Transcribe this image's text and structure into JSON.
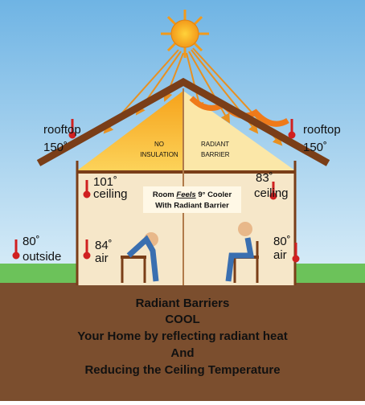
{
  "rooftop_left": {
    "label": "rooftop",
    "temp": "150˚"
  },
  "rooftop_right": {
    "label": "rooftop",
    "temp": "150˚"
  },
  "attic_left": {
    "line1": "NO",
    "line2": "INSULATION"
  },
  "attic_right": {
    "line1": "RADIANT",
    "line2": "BARRIER"
  },
  "callout": {
    "part1": "Room",
    "part2": "Feels",
    "part3": "9° Cooler",
    "line2": "With Radiant Barrier"
  },
  "ceiling_left": {
    "temp": "101˚",
    "label": "ceiling"
  },
  "ceiling_right": {
    "temp": "83˚",
    "label": "ceiling"
  },
  "outside": {
    "temp": "80˚",
    "label": "outside"
  },
  "air_left": {
    "temp": "84˚",
    "label": "air"
  },
  "air_right": {
    "temp": "80˚",
    "label": "air"
  },
  "caption": [
    "Radiant Barriers",
    "COOL",
    "Your Home by reflecting radiant heat",
    "And",
    "Reducing the Ceiling Temperature"
  ]
}
